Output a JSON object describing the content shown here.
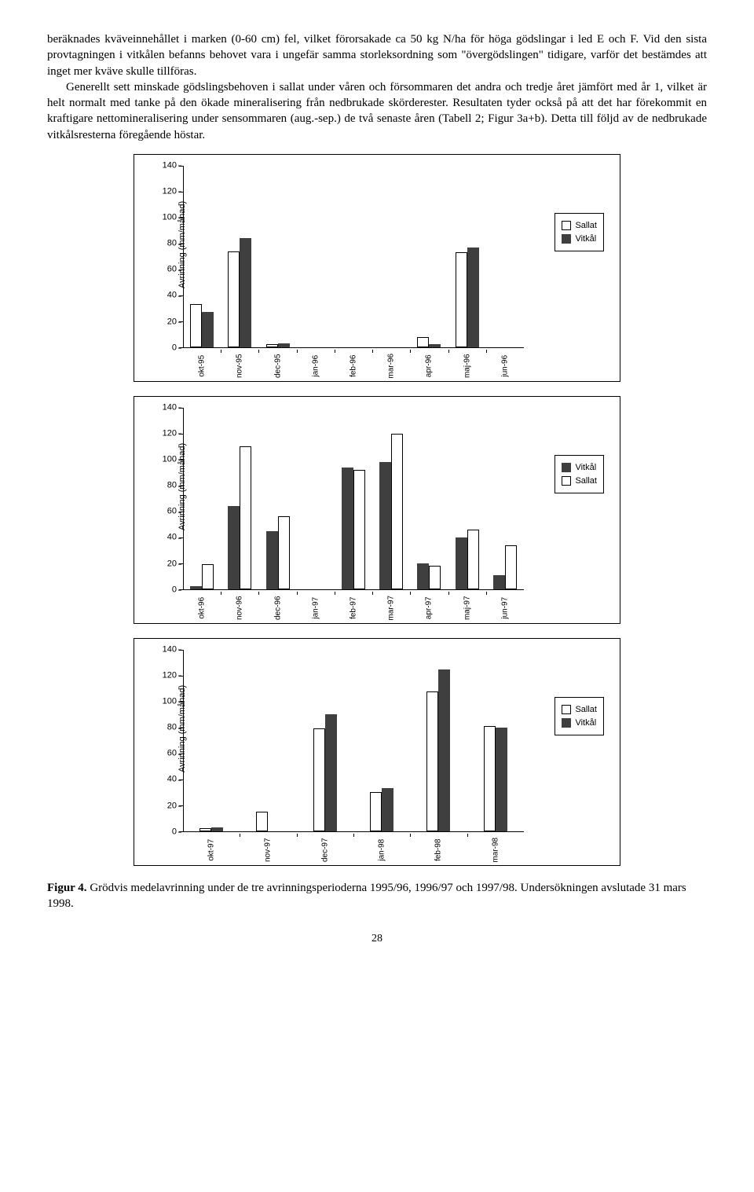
{
  "para1_run1": "beräknades kväveinnehållet i marken (0-60 cm) fel, vilket förorsakade ca 50 kg N/ha för höga gödslingar i led E och F. Vid den sista provtagningen i vitkålen befanns behovet vara i ungefär samma storleksordning som \"övergödslingen\" tidigare, varför det bestämdes att inget mer kväve skulle tillföras.",
  "para2_run1": "Generellt sett minskade gödslingsbehoven i sallat under våren och försommaren det andra och tredje året jämfört med år 1, vilket är helt normalt med tanke på den ökade mineralisering från nedbrukade skörderester. Resultaten tyder också på att det har förekommit en kraftigare nettomineralisering under sensommaren (aug.-sep.) de två senaste åren (Tabell 2; Figur 3a+b). Detta till följd av de nedbrukade vitkålsresterna föregående höstar.",
  "caption": "Figur 4. Grödvis medelavrinning under de tre avrinningsperioderna 1995/96, 1996/97 och 1997/98. Undersökningen avslutade 31 mars 1998.",
  "page_num": "28",
  "common": {
    "ylabel": "Avrinning (mm/månad)",
    "ymax": 140,
    "ytick_step": 20,
    "bar_colors": {
      "outline": "#ffffff",
      "solid": "#3f3f3f"
    },
    "border_color": "#000000",
    "label_fontsize": 11
  },
  "legend_items": {
    "sallat": "Sallat",
    "vitkal": "Vitkål"
  },
  "chart1": {
    "legend_order": [
      "sallat",
      "vitkal"
    ],
    "series_styles": {
      "sallat": "outline",
      "vitkal": "solid"
    },
    "categories": [
      "okt-95",
      "nov-95",
      "dec-95",
      "jan-96",
      "feb-96",
      "mar-96",
      "apr-96",
      "maj-96",
      "jun-96"
    ],
    "data": {
      "sallat": [
        33,
        74,
        2,
        0,
        0,
        0,
        8,
        73,
        0
      ],
      "vitkal": [
        27,
        84,
        3,
        0,
        0,
        0,
        2,
        77,
        0
      ]
    }
  },
  "chart2": {
    "legend_order": [
      "vitkal",
      "sallat"
    ],
    "series_styles": {
      "sallat": "outline",
      "vitkal": "solid"
    },
    "categories": [
      "okt-96",
      "nov-96",
      "dec-96",
      "jan-97",
      "feb-97",
      "mar-97",
      "apr-97",
      "maj-97",
      "jun-97"
    ],
    "data": {
      "vitkal": [
        2,
        64,
        45,
        0,
        94,
        98,
        20,
        40,
        11
      ],
      "sallat": [
        19,
        110,
        56,
        0,
        92,
        120,
        18,
        46,
        34
      ]
    }
  },
  "chart3": {
    "legend_order": [
      "sallat",
      "vitkal"
    ],
    "series_styles": {
      "sallat": "outline",
      "vitkal": "solid"
    },
    "categories": [
      "okt-97",
      "nov-97",
      "dec-97",
      "jan-98",
      "feb-98",
      "mar-98"
    ],
    "data": {
      "sallat": [
        2,
        15,
        79,
        30,
        108,
        81
      ],
      "vitkal": [
        3,
        0,
        90,
        33,
        125,
        80
      ]
    }
  }
}
